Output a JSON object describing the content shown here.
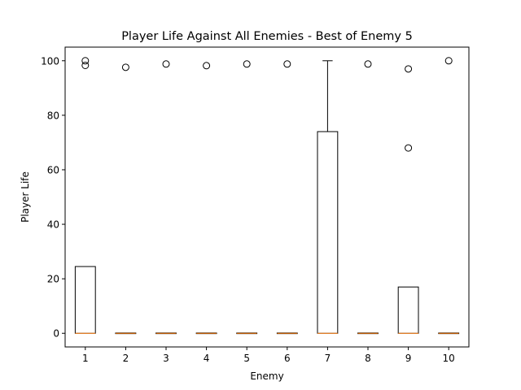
{
  "chart_data": {
    "type": "box",
    "title": "Player Life Against All Enemies - Best of Enemy 5",
    "xlabel": "Enemy",
    "ylabel": "Player Life",
    "categories": [
      "1",
      "2",
      "3",
      "4",
      "5",
      "6",
      "7",
      "8",
      "9",
      "10"
    ],
    "ylim": [
      -5,
      105
    ],
    "yticks": [
      0,
      20,
      40,
      60,
      80,
      100
    ],
    "boxes": [
      {
        "category": "1",
        "min": 0,
        "q1": 0,
        "median": 0,
        "q3": 24.5,
        "max": 24.5,
        "outliers": [
          100,
          98.3
        ]
      },
      {
        "category": "2",
        "min": 0,
        "q1": 0,
        "median": 0,
        "q3": 0,
        "max": 0,
        "outliers": [
          97.6
        ]
      },
      {
        "category": "3",
        "min": 0,
        "q1": 0,
        "median": 0,
        "q3": 0,
        "max": 0,
        "outliers": [
          98.8
        ]
      },
      {
        "category": "4",
        "min": 0,
        "q1": 0,
        "median": 0,
        "q3": 0,
        "max": 0,
        "outliers": [
          98.2
        ]
      },
      {
        "category": "5",
        "min": 0,
        "q1": 0,
        "median": 0,
        "q3": 0,
        "max": 0,
        "outliers": [
          98.8
        ]
      },
      {
        "category": "6",
        "min": 0,
        "q1": 0,
        "median": 0,
        "q3": 0,
        "max": 0,
        "outliers": [
          98.8
        ]
      },
      {
        "category": "7",
        "min": 0,
        "q1": 0,
        "median": 0,
        "q3": 74,
        "max": 100,
        "outliers": []
      },
      {
        "category": "8",
        "min": 0,
        "q1": 0,
        "median": 0,
        "q3": 0,
        "max": 0,
        "outliers": [
          98.8
        ]
      },
      {
        "category": "9",
        "min": 0,
        "q1": 0,
        "median": 0,
        "q3": 17,
        "max": 17,
        "outliers": [
          97,
          68
        ]
      },
      {
        "category": "10",
        "min": 0,
        "q1": 0,
        "median": 0,
        "q3": 0,
        "max": 0,
        "outliers": [
          100
        ]
      }
    ],
    "colors": {
      "box": "#000000",
      "median": "#ff7f0e",
      "outlier": "#000000"
    },
    "grid": false,
    "legend": "none"
  }
}
